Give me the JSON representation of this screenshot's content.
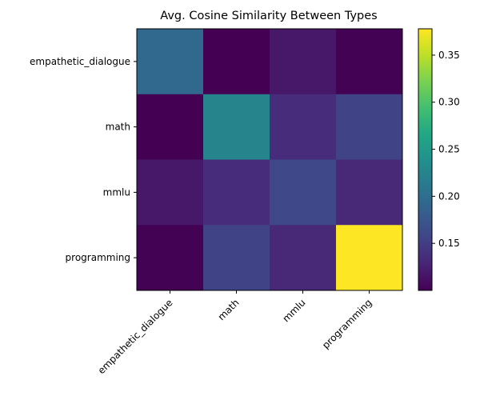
{
  "chart_data": {
    "type": "heatmap",
    "title": "Avg. Cosine Similarity Between Types",
    "rows": [
      "empathetic_dialogue",
      "math",
      "mmlu",
      "programming"
    ],
    "cols": [
      "empathetic_dialogue",
      "math",
      "mmlu",
      "programming"
    ],
    "values": [
      [
        0.195,
        0.1,
        0.118,
        0.101
      ],
      [
        0.1,
        0.225,
        0.135,
        0.155
      ],
      [
        0.118,
        0.135,
        0.16,
        0.132
      ],
      [
        0.101,
        0.155,
        0.132,
        0.378
      ]
    ],
    "colorbar": {
      "vmin": 0.1,
      "vmax": 0.378,
      "ticks": [
        0.15,
        0.2,
        0.25,
        0.3,
        0.35
      ],
      "tick_labels": [
        "0.15",
        "0.20",
        "0.25",
        "0.30",
        "0.35"
      ]
    },
    "colormap": "viridis",
    "xlabel": "",
    "ylabel": ""
  }
}
